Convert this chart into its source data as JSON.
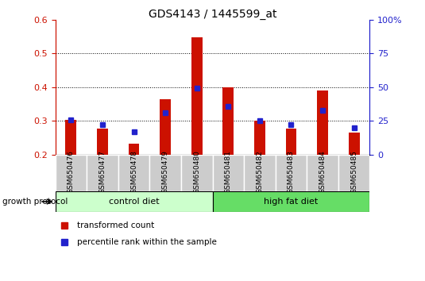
{
  "title": "GDS4143 / 1445599_at",
  "samples": [
    "GSM650476",
    "GSM650477",
    "GSM650478",
    "GSM650479",
    "GSM650480",
    "GSM650481",
    "GSM650482",
    "GSM650483",
    "GSM650484",
    "GSM650485"
  ],
  "red_values": [
    0.302,
    0.277,
    0.232,
    0.365,
    0.547,
    0.4,
    0.3,
    0.278,
    0.39,
    0.265
  ],
  "blue_values": [
    0.302,
    0.288,
    0.268,
    0.325,
    0.398,
    0.342,
    0.3,
    0.288,
    0.33,
    0.28
  ],
  "ylim_left": [
    0.2,
    0.6
  ],
  "ylim_right": [
    0,
    100
  ],
  "yticks_left": [
    0.2,
    0.3,
    0.4,
    0.5,
    0.6
  ],
  "yticks_right": [
    0,
    25,
    50,
    75,
    100
  ],
  "ytick_labels_right": [
    "0",
    "25",
    "50",
    "75",
    "100%"
  ],
  "control_diet_count": 5,
  "high_fat_diet_count": 5,
  "control_color": "#ccffcc",
  "high_fat_color": "#66dd66",
  "red_color": "#cc1100",
  "blue_color": "#2222cc",
  "group_label": "growth protocol",
  "legend_red": "transformed count",
  "legend_blue": "percentile rank within the sample",
  "sample_bg_color": "#cccccc",
  "grid_dotted_values": [
    0.3,
    0.4,
    0.5
  ]
}
